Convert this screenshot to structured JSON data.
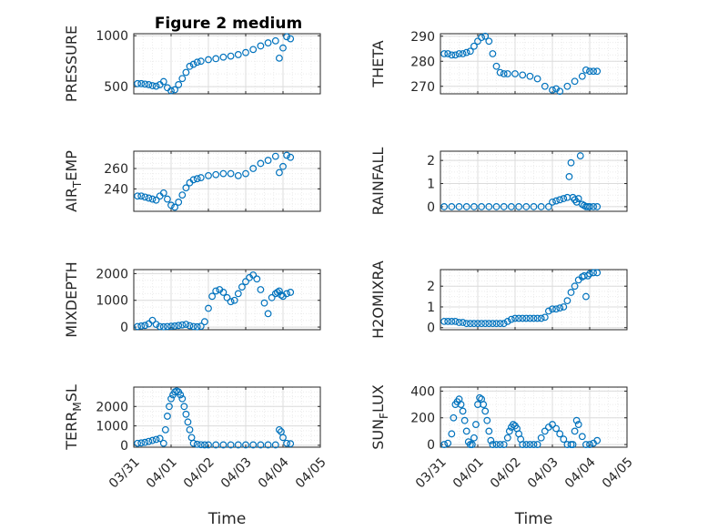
{
  "figure_title": "Figure 2 medium",
  "colors": {
    "marker": "#0072bd",
    "axis": "#262626",
    "grid": "#dcdcdc"
  },
  "chart_data": [
    {
      "id": "pressure",
      "type": "scatter",
      "title": "Figure 2 medium",
      "ylabel_main": "PRESSURE",
      "ylabel_sub": "",
      "ylabel_tail": "",
      "ylim": [
        430,
        1020
      ],
      "yticks": [
        500,
        1000
      ],
      "yticklabels": [
        "500",
        "1000"
      ],
      "xlim": [
        0,
        5
      ],
      "xticks": [
        0,
        1,
        2,
        3,
        4,
        5
      ],
      "xticklabels": [
        "03/31",
        "04/01",
        "04/02",
        "04/03",
        "04/04",
        "04/05"
      ],
      "show_xticklabels": false,
      "xlabel": "",
      "grid": true,
      "x": [
        0.1,
        0.2,
        0.3,
        0.4,
        0.5,
        0.6,
        0.7,
        0.8,
        0.9,
        1.0,
        1.1,
        1.2,
        1.3,
        1.4,
        1.5,
        1.6,
        1.7,
        1.8,
        2.0,
        2.2,
        2.4,
        2.6,
        2.8,
        3.0,
        3.2,
        3.4,
        3.6,
        3.8,
        3.9,
        4.0,
        4.1,
        4.2
      ],
      "y": [
        530,
        530,
        525,
        520,
        510,
        505,
        520,
        550,
        490,
        460,
        470,
        520,
        580,
        640,
        700,
        720,
        740,
        750,
        765,
        775,
        790,
        800,
        815,
        835,
        865,
        900,
        930,
        950,
        780,
        880,
        990,
        970
      ]
    },
    {
      "id": "theta",
      "type": "scatter",
      "ylabel_main": "THETA",
      "ylabel_sub": "",
      "ylabel_tail": "",
      "ylim": [
        267,
        291
      ],
      "yticks": [
        270,
        280,
        290
      ],
      "yticklabels": [
        "270",
        "280",
        "290"
      ],
      "xlim": [
        0,
        5
      ],
      "xticks": [
        0,
        1,
        2,
        3,
        4,
        5
      ],
      "xticklabels": [
        "03/31",
        "04/01",
        "04/02",
        "04/03",
        "04/04",
        "04/05"
      ],
      "show_xticklabels": false,
      "xlabel": "",
      "grid": true,
      "x": [
        0.1,
        0.2,
        0.3,
        0.4,
        0.5,
        0.6,
        0.7,
        0.8,
        0.9,
        1.0,
        1.1,
        1.2,
        1.3,
        1.4,
        1.5,
        1.6,
        1.7,
        1.8,
        2.0,
        2.2,
        2.4,
        2.6,
        2.8,
        3.0,
        3.1,
        3.2,
        3.4,
        3.6,
        3.8,
        3.9,
        4.0,
        4.1,
        4.2
      ],
      "y": [
        283,
        283,
        282.5,
        282.5,
        283,
        283,
        283.5,
        284,
        286,
        288,
        289.5,
        290,
        288,
        283,
        278,
        275.5,
        275,
        275,
        275,
        274.5,
        274,
        273,
        270,
        268.5,
        269,
        268,
        270,
        272,
        274,
        276.5,
        276,
        276,
        276
      ]
    },
    {
      "id": "air_temp",
      "type": "scatter",
      "ylabel_main": "AIR",
      "ylabel_sub": "T",
      "ylabel_tail": "EMP",
      "ylim": [
        218,
        277
      ],
      "yticks": [
        240,
        260
      ],
      "yticklabels": [
        "240",
        "260"
      ],
      "xlim": [
        0,
        5
      ],
      "xticks": [
        0,
        1,
        2,
        3,
        4,
        5
      ],
      "xticklabels": [
        "03/31",
        "04/01",
        "04/02",
        "04/03",
        "04/04",
        "04/05"
      ],
      "show_xticklabels": false,
      "xlabel": "",
      "grid": true,
      "x": [
        0.1,
        0.2,
        0.3,
        0.4,
        0.5,
        0.6,
        0.7,
        0.8,
        0.9,
        1.0,
        1.1,
        1.2,
        1.3,
        1.4,
        1.5,
        1.6,
        1.7,
        1.8,
        2.0,
        2.2,
        2.4,
        2.6,
        2.8,
        3.0,
        3.2,
        3.4,
        3.6,
        3.8,
        3.9,
        4.0,
        4.1,
        4.2
      ],
      "y": [
        233,
        233,
        232,
        231,
        230,
        229,
        233,
        236,
        230,
        224,
        222,
        227,
        234,
        241,
        246,
        249,
        250,
        251,
        253,
        254,
        255,
        255,
        253,
        255,
        260,
        265,
        268,
        272,
        256,
        262,
        273,
        271
      ]
    },
    {
      "id": "rainfall",
      "type": "scatter",
      "ylabel_main": "RAINFALL",
      "ylabel_sub": "",
      "ylabel_tail": "",
      "ylim": [
        -0.2,
        2.4
      ],
      "yticks": [
        0,
        1,
        2
      ],
      "yticklabels": [
        "0",
        "1",
        "2"
      ],
      "xlim": [
        0,
        5
      ],
      "xticks": [
        0,
        1,
        2,
        3,
        4,
        5
      ],
      "xticklabels": [
        "03/31",
        "04/01",
        "04/02",
        "04/03",
        "04/04",
        "04/05"
      ],
      "show_xticklabels": false,
      "xlabel": "",
      "grid": true,
      "x": [
        0.1,
        0.3,
        0.5,
        0.7,
        0.9,
        1.1,
        1.3,
        1.5,
        1.7,
        1.9,
        2.1,
        2.3,
        2.5,
        2.7,
        2.9,
        3.0,
        3.1,
        3.2,
        3.3,
        3.4,
        3.45,
        3.5,
        3.55,
        3.6,
        3.65,
        3.7,
        3.75,
        3.8,
        3.85,
        3.9,
        3.95,
        4.0,
        4.1,
        4.2
      ],
      "y": [
        0,
        0,
        0,
        0,
        0,
        0,
        0,
        0,
        0,
        0,
        0,
        0,
        0,
        0,
        0,
        0.2,
        0.25,
        0.3,
        0.35,
        0.4,
        1.3,
        1.9,
        0.4,
        0.3,
        0.2,
        0.35,
        2.2,
        0.1,
        0.05,
        0,
        0,
        0,
        0,
        0
      ]
    },
    {
      "id": "mixdepth",
      "type": "scatter",
      "ylabel_main": "MIXDEPTH",
      "ylabel_sub": "",
      "ylabel_tail": "",
      "ylim": [
        -100,
        2150
      ],
      "yticks": [
        0,
        1000,
        2000
      ],
      "yticklabels": [
        "0",
        "1000",
        "2000"
      ],
      "xlim": [
        0,
        5
      ],
      "xticks": [
        0,
        1,
        2,
        3,
        4,
        5
      ],
      "xticklabels": [
        "03/31",
        "04/01",
        "04/02",
        "04/03",
        "04/04",
        "04/05"
      ],
      "show_xticklabels": false,
      "xlabel": "",
      "grid": true,
      "x": [
        0.1,
        0.2,
        0.3,
        0.4,
        0.5,
        0.6,
        0.7,
        0.8,
        0.9,
        1.0,
        1.1,
        1.2,
        1.3,
        1.4,
        1.5,
        1.6,
        1.7,
        1.8,
        1.9,
        2.0,
        2.1,
        2.2,
        2.3,
        2.4,
        2.5,
        2.6,
        2.7,
        2.8,
        2.9,
        3.0,
        3.1,
        3.2,
        3.3,
        3.4,
        3.5,
        3.6,
        3.7,
        3.8,
        3.85,
        3.9,
        3.95,
        4.0,
        4.1,
        4.2
      ],
      "y": [
        20,
        40,
        60,
        120,
        250,
        100,
        20,
        10,
        20,
        30,
        40,
        60,
        80,
        100,
        50,
        20,
        10,
        30,
        200,
        700,
        1150,
        1350,
        1400,
        1300,
        1100,
        950,
        1000,
        1250,
        1500,
        1700,
        1850,
        1950,
        1800,
        1400,
        900,
        500,
        1100,
        1250,
        1300,
        1350,
        1200,
        1150,
        1250,
        1300
      ]
    },
    {
      "id": "h2omixra",
      "type": "scatter",
      "ylabel_main": "H2OMIXRA",
      "ylabel_sub": "",
      "ylabel_tail": "",
      "ylim": [
        -0.1,
        2.8
      ],
      "yticks": [
        0,
        1,
        2
      ],
      "yticklabels": [
        "0",
        "1",
        "2"
      ],
      "xlim": [
        0,
        5
      ],
      "xticks": [
        0,
        1,
        2,
        3,
        4,
        5
      ],
      "xticklabels": [
        "03/31",
        "04/01",
        "04/02",
        "04/03",
        "04/04",
        "04/05"
      ],
      "show_xticklabels": false,
      "xlabel": "",
      "grid": true,
      "x": [
        0.1,
        0.2,
        0.3,
        0.4,
        0.5,
        0.6,
        0.7,
        0.8,
        0.9,
        1.0,
        1.1,
        1.2,
        1.3,
        1.4,
        1.5,
        1.6,
        1.7,
        1.8,
        1.9,
        2.0,
        2.1,
        2.2,
        2.3,
        2.4,
        2.5,
        2.6,
        2.7,
        2.8,
        2.9,
        3.0,
        3.1,
        3.2,
        3.3,
        3.4,
        3.5,
        3.6,
        3.7,
        3.8,
        3.85,
        3.9,
        3.95,
        4.0,
        4.1,
        4.2
      ],
      "y": [
        0.3,
        0.3,
        0.3,
        0.3,
        0.25,
        0.25,
        0.2,
        0.2,
        0.2,
        0.2,
        0.2,
        0.2,
        0.2,
        0.2,
        0.2,
        0.2,
        0.2,
        0.3,
        0.4,
        0.45,
        0.45,
        0.45,
        0.45,
        0.45,
        0.45,
        0.45,
        0.45,
        0.5,
        0.8,
        0.9,
        0.9,
        0.95,
        1.0,
        1.3,
        1.7,
        2.0,
        2.3,
        2.45,
        2.5,
        1.5,
        2.5,
        2.6,
        2.65,
        2.65
      ]
    },
    {
      "id": "terr_msl",
      "type": "scatter",
      "ylabel_main": "TERR",
      "ylabel_sub": "M",
      "ylabel_tail": "SL",
      "ylim": [
        -100,
        3000
      ],
      "yticks": [
        0,
        1000,
        2000
      ],
      "yticklabels": [
        "0",
        "1000",
        "2000"
      ],
      "xlim": [
        0,
        5
      ],
      "xticks": [
        0,
        1,
        2,
        3,
        4,
        5
      ],
      "xticklabels": [
        "03/31",
        "04/01",
        "04/02",
        "04/03",
        "04/04",
        "04/05"
      ],
      "show_xticklabels": true,
      "xlabel": "Time",
      "grid": true,
      "x": [
        0.1,
        0.2,
        0.3,
        0.4,
        0.5,
        0.6,
        0.7,
        0.8,
        0.85,
        0.9,
        0.95,
        1.0,
        1.05,
        1.1,
        1.15,
        1.2,
        1.25,
        1.3,
        1.35,
        1.4,
        1.45,
        1.5,
        1.55,
        1.6,
        1.7,
        1.8,
        1.9,
        2.0,
        2.2,
        2.4,
        2.6,
        2.8,
        3.0,
        3.2,
        3.4,
        3.6,
        3.8,
        3.9,
        3.95,
        4.0,
        4.1,
        4.2
      ],
      "y": [
        100,
        120,
        150,
        200,
        250,
        300,
        350,
        100,
        800,
        1500,
        2000,
        2400,
        2600,
        2750,
        2800,
        2750,
        2600,
        2400,
        2000,
        1600,
        1200,
        800,
        400,
        100,
        50,
        30,
        20,
        20,
        20,
        20,
        20,
        20,
        20,
        20,
        20,
        20,
        20,
        800,
        700,
        400,
        100,
        80
      ]
    },
    {
      "id": "sun_flux",
      "type": "scatter",
      "ylabel_main": "SUN",
      "ylabel_sub": "F",
      "ylabel_tail": "LUX",
      "ylim": [
        -20,
        430
      ],
      "yticks": [
        0,
        200,
        400
      ],
      "yticklabels": [
        "0",
        "200",
        "400"
      ],
      "xlim": [
        0,
        5
      ],
      "xticks": [
        0,
        1,
        2,
        3,
        4,
        5
      ],
      "xticklabels": [
        "03/31",
        "04/01",
        "04/02",
        "04/03",
        "04/04",
        "04/05"
      ],
      "show_xticklabels": true,
      "xlabel": "Time",
      "grid": true,
      "x": [
        0.1,
        0.2,
        0.3,
        0.35,
        0.4,
        0.45,
        0.5,
        0.55,
        0.6,
        0.65,
        0.7,
        0.75,
        0.8,
        0.85,
        0.9,
        0.95,
        1.0,
        1.05,
        1.1,
        1.15,
        1.2,
        1.25,
        1.3,
        1.35,
        1.4,
        1.5,
        1.6,
        1.7,
        1.8,
        1.85,
        1.9,
        1.95,
        2.0,
        2.05,
        2.1,
        2.15,
        2.2,
        2.3,
        2.4,
        2.5,
        2.6,
        2.7,
        2.8,
        2.9,
        3.0,
        3.1,
        3.2,
        3.3,
        3.4,
        3.5,
        3.55,
        3.6,
        3.65,
        3.7,
        3.8,
        3.9,
        4.0,
        4.1,
        4.2
      ],
      "y": [
        0,
        10,
        80,
        200,
        300,
        320,
        340,
        300,
        250,
        180,
        100,
        20,
        0,
        0,
        50,
        150,
        300,
        350,
        340,
        300,
        250,
        180,
        100,
        30,
        0,
        0,
        0,
        0,
        50,
        100,
        130,
        150,
        140,
        120,
        80,
        40,
        0,
        0,
        0,
        0,
        0,
        50,
        100,
        130,
        150,
        120,
        80,
        40,
        0,
        0,
        0,
        100,
        180,
        150,
        60,
        0,
        0,
        10,
        30
      ]
    }
  ]
}
